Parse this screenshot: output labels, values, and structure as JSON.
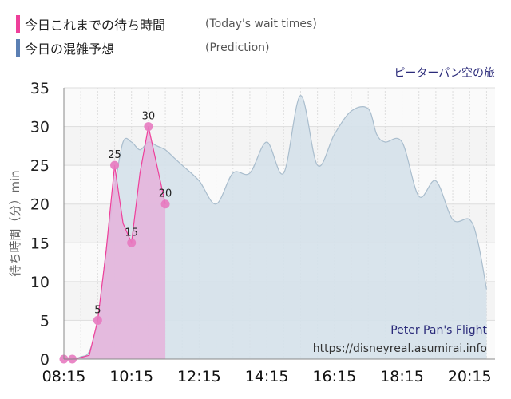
{
  "legend": {
    "today_label": "今日これまでの待ち時間",
    "today_label_en": "(Today's wait times)",
    "prediction_label": "今日の混雑予想",
    "prediction_label_en": "(Prediction)"
  },
  "header": {
    "attraction_name_ja": "ピーターパン空の旅"
  },
  "footer": {
    "attraction_name_en": "Peter Pan's Flight",
    "site_url": "https://disneyreal.asumirai.info"
  },
  "colors": {
    "today": "#ee3f9a",
    "today_fill": "#e5b3dc",
    "prediction": "#5b7fb3",
    "prediction_fill": "#d5e1ea",
    "prediction_line": "#a9bdcd"
  },
  "chart_data": {
    "type": "area",
    "ylabel": "待ち時間（分）min",
    "ylim": [
      0,
      35
    ],
    "yticks": [
      0,
      5,
      10,
      15,
      20,
      25,
      30,
      35
    ],
    "xlim": [
      "08:15",
      "21:00"
    ],
    "xticks": [
      "08:15",
      "10:15",
      "12:15",
      "14:15",
      "16:15",
      "18:15",
      "20:15"
    ],
    "grid": true,
    "series": [
      {
        "name": "今日の混雑予想",
        "points": [
          [
            "08:15",
            0
          ],
          [
            "08:30",
            0
          ],
          [
            "08:45",
            0.3
          ],
          [
            "09:00",
            1
          ],
          [
            "09:15",
            5
          ],
          [
            "09:30",
            14
          ],
          [
            "09:45",
            22
          ],
          [
            "10:00",
            28
          ],
          [
            "10:15",
            28
          ],
          [
            "10:30",
            27
          ],
          [
            "10:45",
            28
          ],
          [
            "11:00",
            27.5
          ],
          [
            "11:15",
            27
          ],
          [
            "11:30",
            26
          ],
          [
            "11:45",
            25
          ],
          [
            "12:15",
            23
          ],
          [
            "12:45",
            20
          ],
          [
            "13:15",
            24
          ],
          [
            "13:45",
            24
          ],
          [
            "14:15",
            28
          ],
          [
            "14:45",
            24
          ],
          [
            "15:15",
            34
          ],
          [
            "15:45",
            25
          ],
          [
            "16:15",
            29
          ],
          [
            "16:45",
            32
          ],
          [
            "17:15",
            32.3
          ],
          [
            "17:30",
            29
          ],
          [
            "17:45",
            28
          ],
          [
            "18:15",
            28
          ],
          [
            "18:45",
            21
          ],
          [
            "19:15",
            23
          ],
          [
            "19:45",
            18
          ],
          [
            "20:15",
            18
          ],
          [
            "20:30",
            15
          ],
          [
            "20:45",
            9
          ]
        ]
      },
      {
        "name": "今日これまでの待ち時間",
        "points": [
          [
            "08:15",
            0
          ],
          [
            "08:30",
            0
          ],
          [
            "08:45",
            0.2
          ],
          [
            "09:00",
            0.5
          ],
          [
            "09:15",
            5
          ],
          [
            "09:30",
            14
          ],
          [
            "09:45",
            25
          ],
          [
            "10:00",
            17.5
          ],
          [
            "10:15",
            15
          ],
          [
            "10:30",
            24
          ],
          [
            "10:45",
            30
          ],
          [
            "11:00",
            25
          ],
          [
            "11:15",
            20
          ]
        ],
        "labeled_points": [
          {
            "time": "08:15",
            "value": 0,
            "label": ""
          },
          {
            "time": "08:30",
            "value": 0,
            "label": ""
          },
          {
            "time": "09:15",
            "value": 5,
            "label": "5"
          },
          {
            "time": "09:45",
            "value": 25,
            "label": "25"
          },
          {
            "time": "10:15",
            "value": 15,
            "label": "15"
          },
          {
            "time": "10:45",
            "value": 30,
            "label": "30"
          },
          {
            "time": "11:15",
            "value": 20,
            "label": "20"
          }
        ]
      }
    ]
  }
}
